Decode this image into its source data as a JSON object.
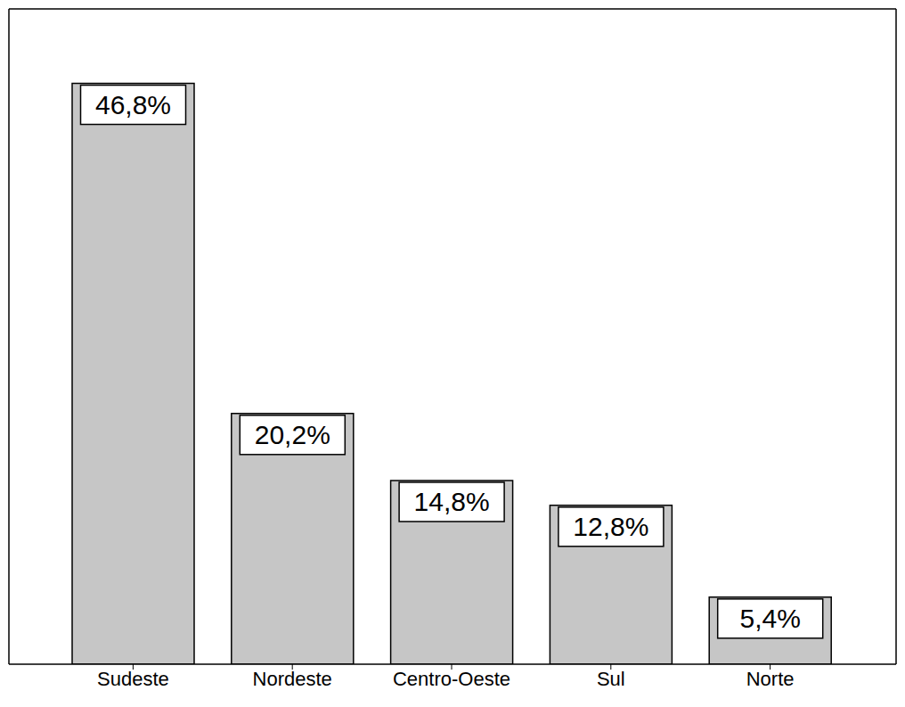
{
  "chart_data": {
    "type": "bar",
    "categories": [
      "Sudeste",
      "Nordeste",
      "Centro-Oeste",
      "Sul",
      "Norte"
    ],
    "values": [
      46.8,
      20.2,
      14.8,
      12.8,
      5.4
    ],
    "value_labels": [
      "46,8%",
      "20,2%",
      "14,8%",
      "12,8%",
      "5,4%"
    ],
    "color": "#c6c6c6",
    "ylim": [
      0,
      52.8
    ],
    "data_labels": true,
    "tick_labels": "x",
    "grid": false
  }
}
